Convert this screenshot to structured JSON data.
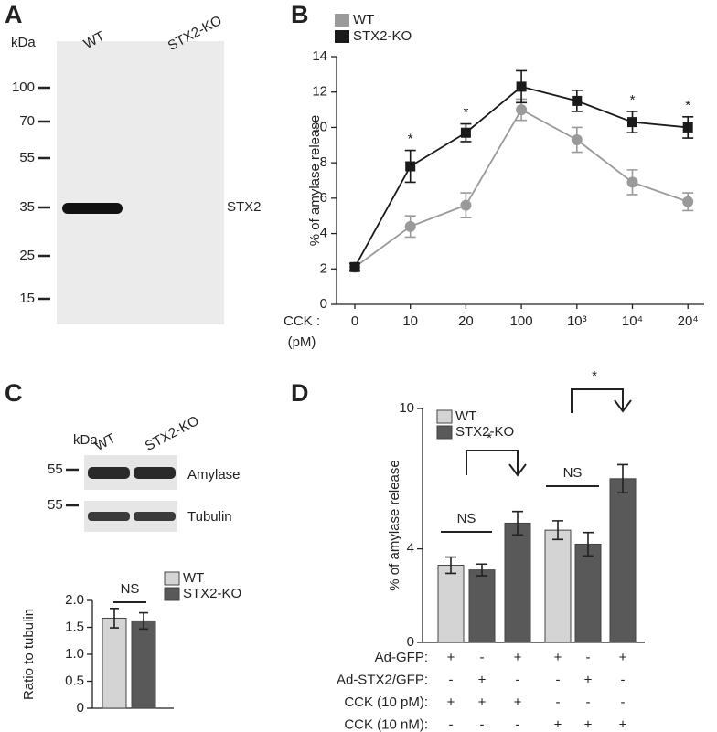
{
  "panel_labels": [
    "A",
    "B",
    "C",
    "D"
  ],
  "blot_a": {
    "unit": "kDa",
    "lanes": [
      "WT",
      "STX2-KO"
    ],
    "markers": [
      "100",
      "70",
      "55",
      "35",
      "25",
      "15"
    ],
    "band_label": "STX2"
  },
  "blot_c": {
    "unit": "kDa",
    "lanes": [
      "WT",
      "STX2-KO"
    ],
    "rows": [
      {
        "marker": "55",
        "label": "Amylase"
      },
      {
        "marker": "55",
        "label": "Tubulin"
      }
    ]
  },
  "chart_data": [
    {
      "type": "line",
      "y_label": "% of amylase release",
      "x_label": "CCK :",
      "x_unit": "(pM)",
      "categories": [
        "0",
        "10",
        "20",
        "100",
        "10³",
        "10⁴",
        "20⁴"
      ],
      "ylim": [
        0,
        14
      ],
      "yticks": [
        0,
        2,
        4,
        6,
        8,
        10,
        12,
        14
      ],
      "series": [
        {
          "name": "WT",
          "color": "#9a9a9a",
          "values": [
            2.1,
            4.4,
            5.6,
            11.0,
            9.3,
            6.9,
            5.8
          ],
          "errors": [
            0.2,
            0.6,
            0.7,
            0.6,
            0.7,
            0.7,
            0.5
          ]
        },
        {
          "name": "STX2-KO",
          "color": "#1a1a1a",
          "values": [
            2.1,
            7.8,
            9.7,
            12.3,
            11.5,
            10.3,
            10.0
          ],
          "errors": [
            0.2,
            0.9,
            0.5,
            0.9,
            0.6,
            0.6,
            0.6
          ]
        }
      ],
      "significance": [
        null,
        "*",
        "*",
        null,
        null,
        "*",
        "*"
      ]
    },
    {
      "type": "bar",
      "y_label": "Ratio to tubulin",
      "ylim": [
        0,
        2
      ],
      "yticks": [
        0,
        0.5,
        {
          "value": 1,
          "label": "1.0"
        },
        1.5,
        {
          "value": 2,
          "label": "2.0"
        }
      ],
      "series": [
        {
          "name": "WT",
          "color": "#d4d4d4",
          "values": [
            1.67
          ],
          "errors": [
            0.18
          ]
        },
        {
          "name": "STX2-KO",
          "color": "#595959",
          "values": [
            1.62
          ],
          "errors": [
            0.15
          ]
        }
      ],
      "annotation": "NS"
    },
    {
      "type": "grouped-bar",
      "y_label": "% of amylase release",
      "ylim": [
        0,
        10
      ],
      "yticks": [
        0,
        4,
        10
      ],
      "series": [
        {
          "name": "WT",
          "color": "#d4d4d4",
          "values": [
            3.3,
            4.8
          ],
          "errors": [
            0.35,
            0.4
          ]
        },
        {
          "name": "STX2-KO",
          "color": "#595959",
          "values": [
            3.1,
            5.1,
            4.2,
            7.0
          ],
          "errors": [
            0.25,
            0.5,
            0.5,
            0.6
          ]
        }
      ],
      "brackets": [
        "NS",
        "*",
        "NS",
        "*"
      ],
      "conditions": [
        {
          "label": "Ad-GFP:",
          "marks": [
            "+",
            "-",
            "+",
            "+",
            "-",
            "+"
          ]
        },
        {
          "label": "Ad-STX2/GFP:",
          "marks": [
            "-",
            "+",
            "-",
            "-",
            "+",
            "-"
          ]
        },
        {
          "label": "CCK (10 pM):",
          "marks": [
            "+",
            "+",
            "+",
            "-",
            "-",
            "-"
          ]
        },
        {
          "label": "CCK (10 nM):",
          "marks": [
            "-",
            "-",
            "-",
            "+",
            "+",
            "+"
          ]
        }
      ]
    }
  ]
}
